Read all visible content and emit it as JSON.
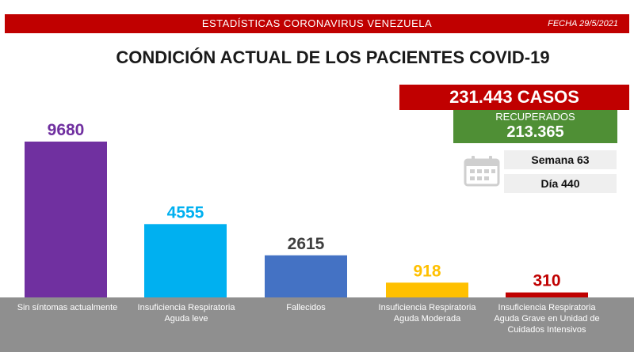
{
  "header": {
    "title": "ESTADÍSTICAS CORONAVIRUS VENEZUELA",
    "date": "FECHA 29/5/2021"
  },
  "main_title": "CONDICIÓN ACTUAL DE LOS PACIENTES COVID-19",
  "stats": {
    "cases": "231.443 CASOS",
    "recovered_label": "RECUPERADOS",
    "recovered_value": "213.365",
    "week": "Semana 63",
    "day": "Día 440"
  },
  "icons": {
    "calendar": "calendar-icon"
  },
  "colors": {
    "header_red": "#c00000",
    "recovered_green": "#4f8f35",
    "bottom_bar": "#8f8f8f"
  },
  "chart_data": {
    "type": "bar",
    "categories": [
      "Sin síntomas actualmente",
      "Insuficiencia Respiratoria Aguda leve",
      "Fallecidos",
      "Insuficiencia Respiratoria Aguda Moderada",
      "Insuficiencia Respiratoria Aguda Grave en Unidad de Cuidados Intensivos"
    ],
    "values": [
      9680,
      4555,
      2615,
      918,
      310
    ],
    "colors": [
      "#7030a0",
      "#00b0f0",
      "#4472c4",
      "#ffc000",
      "#c00000"
    ],
    "label_colors": [
      "#7030a0",
      "#00b0f0",
      "#3f3f3f",
      "#ffc000",
      "#c00000"
    ],
    "ylim": [
      0,
      9680
    ],
    "grid": false
  }
}
